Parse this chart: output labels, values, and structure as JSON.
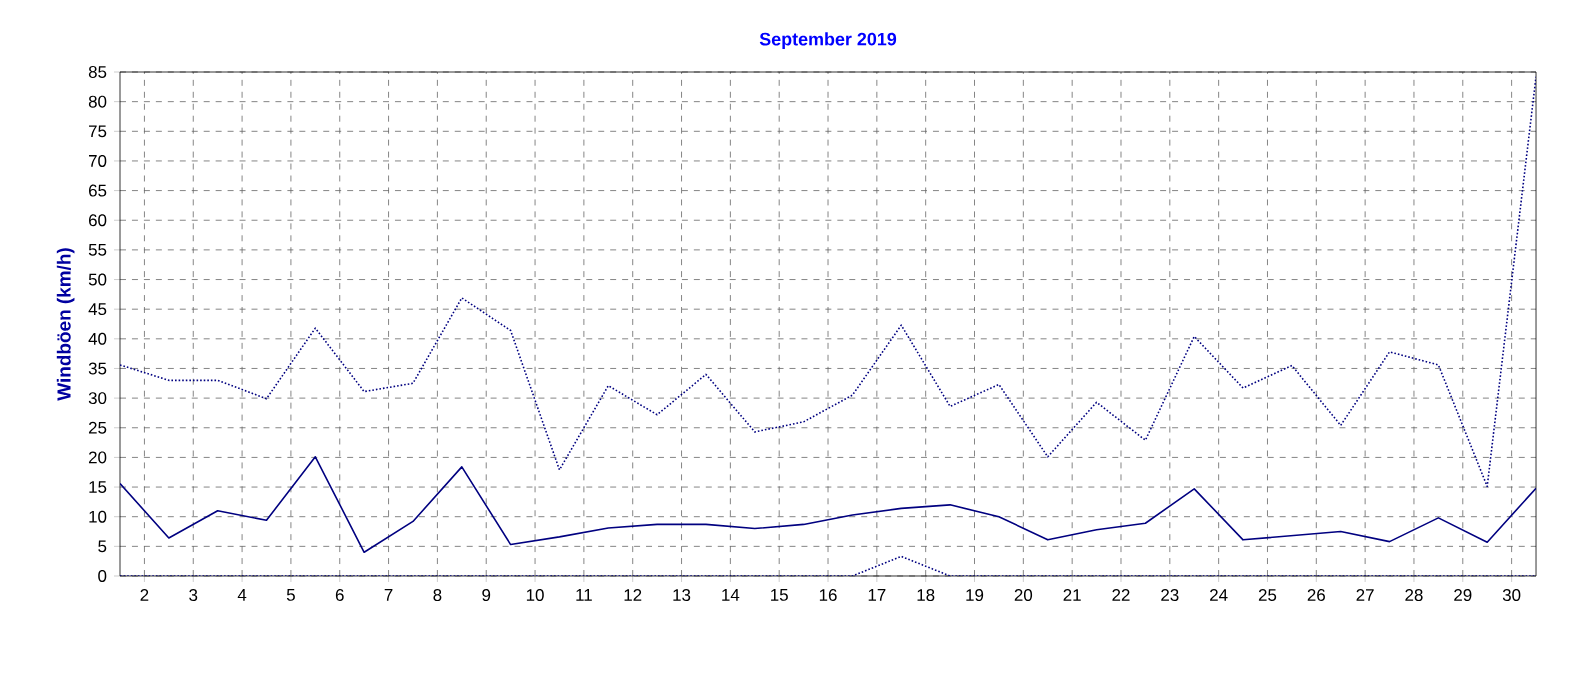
{
  "chart_data": {
    "type": "line",
    "title": "September 2019",
    "ylabel": "Windböen (km/h)",
    "x": [
      1.5,
      2.5,
      3.5,
      4.5,
      5.5,
      6.5,
      7.5,
      8.5,
      9.5,
      10.5,
      11.5,
      12.5,
      13.5,
      14.5,
      15.5,
      16.5,
      17.5,
      18.5,
      19.5,
      20.5,
      21.5,
      22.5,
      23.5,
      24.5,
      25.5,
      26.5,
      27.5,
      28.5,
      29.5,
      30.5
    ],
    "series": [
      {
        "color": "#000080",
        "line_style": "dotted",
        "values": [
          35.6,
          33.0,
          33.0,
          29.9,
          41.8,
          31.1,
          32.5,
          46.9,
          41.4,
          17.9,
          32.1,
          27.2,
          34.0,
          24.3,
          26.0,
          30.5,
          42.3,
          28.6,
          32.3,
          20.1,
          29.3,
          22.9,
          40.4,
          31.7,
          35.5,
          25.4,
          37.8,
          35.6,
          15.1,
          84.2
        ]
      },
      {
        "color": "#000080",
        "line_style": "solid",
        "values": [
          15.6,
          6.4,
          11.0,
          9.4,
          20.1,
          4.0,
          9.2,
          18.4,
          5.3,
          6.6,
          8.1,
          8.7,
          8.7,
          8.0,
          8.7,
          10.3,
          11.4,
          12.0,
          10.0,
          6.1,
          7.8,
          8.9,
          14.7,
          6.1,
          6.8,
          7.5,
          5.8,
          9.8,
          5.7,
          14.8
        ]
      },
      {
        "color": "#000080",
        "line_style": "dotted",
        "values": [
          0,
          0,
          0,
          0,
          0,
          0,
          0,
          0,
          0,
          0,
          0,
          0,
          0,
          0,
          0,
          0,
          3.3,
          0,
          0,
          0,
          0,
          0,
          0,
          0,
          0,
          0,
          0,
          0,
          0,
          0
        ]
      }
    ],
    "xlim": [
      1.5,
      30.5
    ],
    "ylim": [
      0,
      85
    ],
    "xticks": [
      2,
      3,
      4,
      5,
      6,
      7,
      8,
      9,
      10,
      11,
      12,
      13,
      14,
      15,
      16,
      17,
      18,
      19,
      20,
      21,
      22,
      23,
      24,
      25,
      26,
      27,
      28,
      29,
      30
    ],
    "yticks": [
      0,
      5,
      10,
      15,
      20,
      25,
      30,
      35,
      40,
      45,
      50,
      55,
      60,
      65,
      70,
      75,
      80,
      85
    ],
    "grid": true,
    "legend": false
  }
}
